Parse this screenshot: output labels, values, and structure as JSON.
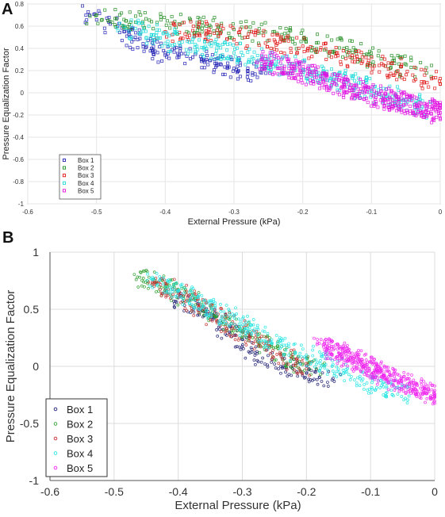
{
  "chart_data": [
    {
      "panel": "A",
      "type": "scatter",
      "xlabel": "External Pressure (kPa)",
      "ylabel": "Pressure Equalization Factor",
      "xlim": [
        -0.6,
        0
      ],
      "ylim": [
        -1,
        0.8
      ],
      "xticks": [
        "-0.6",
        "-0.5",
        "-0.4",
        "-0.3",
        "-0.2",
        "-0.1",
        "0"
      ],
      "yticks": [
        "0.8",
        "0.6",
        "0.4",
        "0.2",
        "0",
        "-0.2",
        "-0.4",
        "-0.6",
        "-0.8",
        "-1"
      ],
      "grid": true,
      "legend_position": "bottom-left",
      "series": [
        {
          "name": "Box 1",
          "color": "#1f1fb4",
          "marker": "square",
          "x": [
            -0.51,
            -0.48,
            -0.46,
            -0.44,
            -0.42,
            -0.4,
            -0.38,
            -0.36,
            -0.34,
            -0.32,
            -0.3,
            -0.28,
            -0.26
          ],
          "y": [
            0.7,
            0.62,
            0.55,
            0.48,
            0.4,
            0.36,
            0.34,
            0.32,
            0.3,
            0.26,
            0.22,
            0.2,
            0.18
          ]
        },
        {
          "name": "Box 2",
          "color": "#1e8c1e",
          "marker": "square",
          "x": [
            -0.5,
            -0.46,
            -0.42,
            -0.38,
            -0.34,
            -0.3,
            -0.26,
            -0.22,
            -0.18,
            -0.14,
            -0.1,
            -0.06,
            -0.02
          ],
          "y": [
            0.7,
            0.66,
            0.64,
            0.62,
            0.6,
            0.57,
            0.54,
            0.5,
            0.45,
            0.4,
            0.33,
            0.26,
            0.18
          ]
        },
        {
          "name": "Box 3",
          "color": "#e01010",
          "marker": "square",
          "x": [
            -0.4,
            -0.36,
            -0.32,
            -0.28,
            -0.24,
            -0.2,
            -0.16,
            -0.12,
            -0.08,
            -0.04,
            0.0
          ],
          "y": [
            0.55,
            0.56,
            0.54,
            0.5,
            0.46,
            0.42,
            0.37,
            0.3,
            0.24,
            0.16,
            0.08
          ]
        },
        {
          "name": "Box 4",
          "color": "#18d8d8",
          "marker": "square",
          "x": [
            -0.46,
            -0.42,
            -0.38,
            -0.34,
            -0.3,
            -0.26,
            -0.22,
            -0.18,
            -0.14,
            -0.1,
            -0.06,
            -0.02
          ],
          "y": [
            0.6,
            0.52,
            0.45,
            0.4,
            0.36,
            0.3,
            0.24,
            0.16,
            0.1,
            0.02,
            -0.06,
            -0.14
          ]
        },
        {
          "name": "Box 5",
          "color": "#e010e0",
          "marker": "square",
          "x": [
            -0.26,
            -0.22,
            -0.18,
            -0.14,
            -0.1,
            -0.06,
            -0.02,
            0.0
          ],
          "y": [
            0.3,
            0.22,
            0.14,
            0.06,
            -0.02,
            -0.08,
            -0.14,
            -0.18
          ]
        }
      ]
    },
    {
      "panel": "B",
      "type": "scatter",
      "xlabel": "External Pressure (kPa)",
      "ylabel": "Pressure Equalization Factor",
      "xlim": [
        -0.6,
        0
      ],
      "ylim": [
        -1,
        1
      ],
      "xticks": [
        "-0.6",
        "-0.5",
        "-0.4",
        "-0.3",
        "-0.2",
        "-0.1",
        "0"
      ],
      "yticks": [
        "1",
        "0.5",
        "0",
        "-0.5",
        "-1"
      ],
      "grid": true,
      "legend_position": "bottom-left",
      "series": [
        {
          "name": "Box 1",
          "color": "#1a1a70",
          "marker": "circle",
          "x": [
            -0.4,
            -0.36,
            -0.32,
            -0.28,
            -0.24,
            -0.2,
            -0.16
          ],
          "y": [
            0.6,
            0.48,
            0.3,
            0.12,
            0.0,
            -0.06,
            -0.12
          ]
        },
        {
          "name": "Box 2",
          "color": "#2ea02e",
          "marker": "circle",
          "x": [
            -0.46,
            -0.42,
            -0.38,
            -0.34,
            -0.3,
            -0.26,
            -0.22,
            -0.18
          ],
          "y": [
            0.78,
            0.7,
            0.58,
            0.44,
            0.3,
            0.18,
            0.06,
            -0.04
          ]
        },
        {
          "name": "Box 3",
          "color": "#c03030",
          "marker": "circle",
          "x": [
            -0.44,
            -0.4,
            -0.36,
            -0.32,
            -0.28,
            -0.24,
            -0.2
          ],
          "y": [
            0.74,
            0.64,
            0.5,
            0.36,
            0.22,
            0.1,
            -0.02
          ]
        },
        {
          "name": "Box 4",
          "color": "#22e4e4",
          "marker": "circle",
          "x": [
            -0.44,
            -0.4,
            -0.36,
            -0.32,
            -0.28,
            -0.24,
            -0.2,
            -0.16,
            -0.12,
            -0.08,
            -0.04
          ],
          "y": [
            0.78,
            0.66,
            0.54,
            0.42,
            0.3,
            0.2,
            0.1,
            0.0,
            -0.1,
            -0.18,
            -0.26
          ]
        },
        {
          "name": "Box 5",
          "color": "#ee22ee",
          "marker": "circle",
          "x": [
            -0.18,
            -0.15,
            -0.12,
            -0.09,
            -0.06,
            -0.03,
            0.0
          ],
          "y": [
            0.2,
            0.12,
            0.04,
            -0.04,
            -0.12,
            -0.2,
            -0.26
          ]
        }
      ]
    }
  ]
}
